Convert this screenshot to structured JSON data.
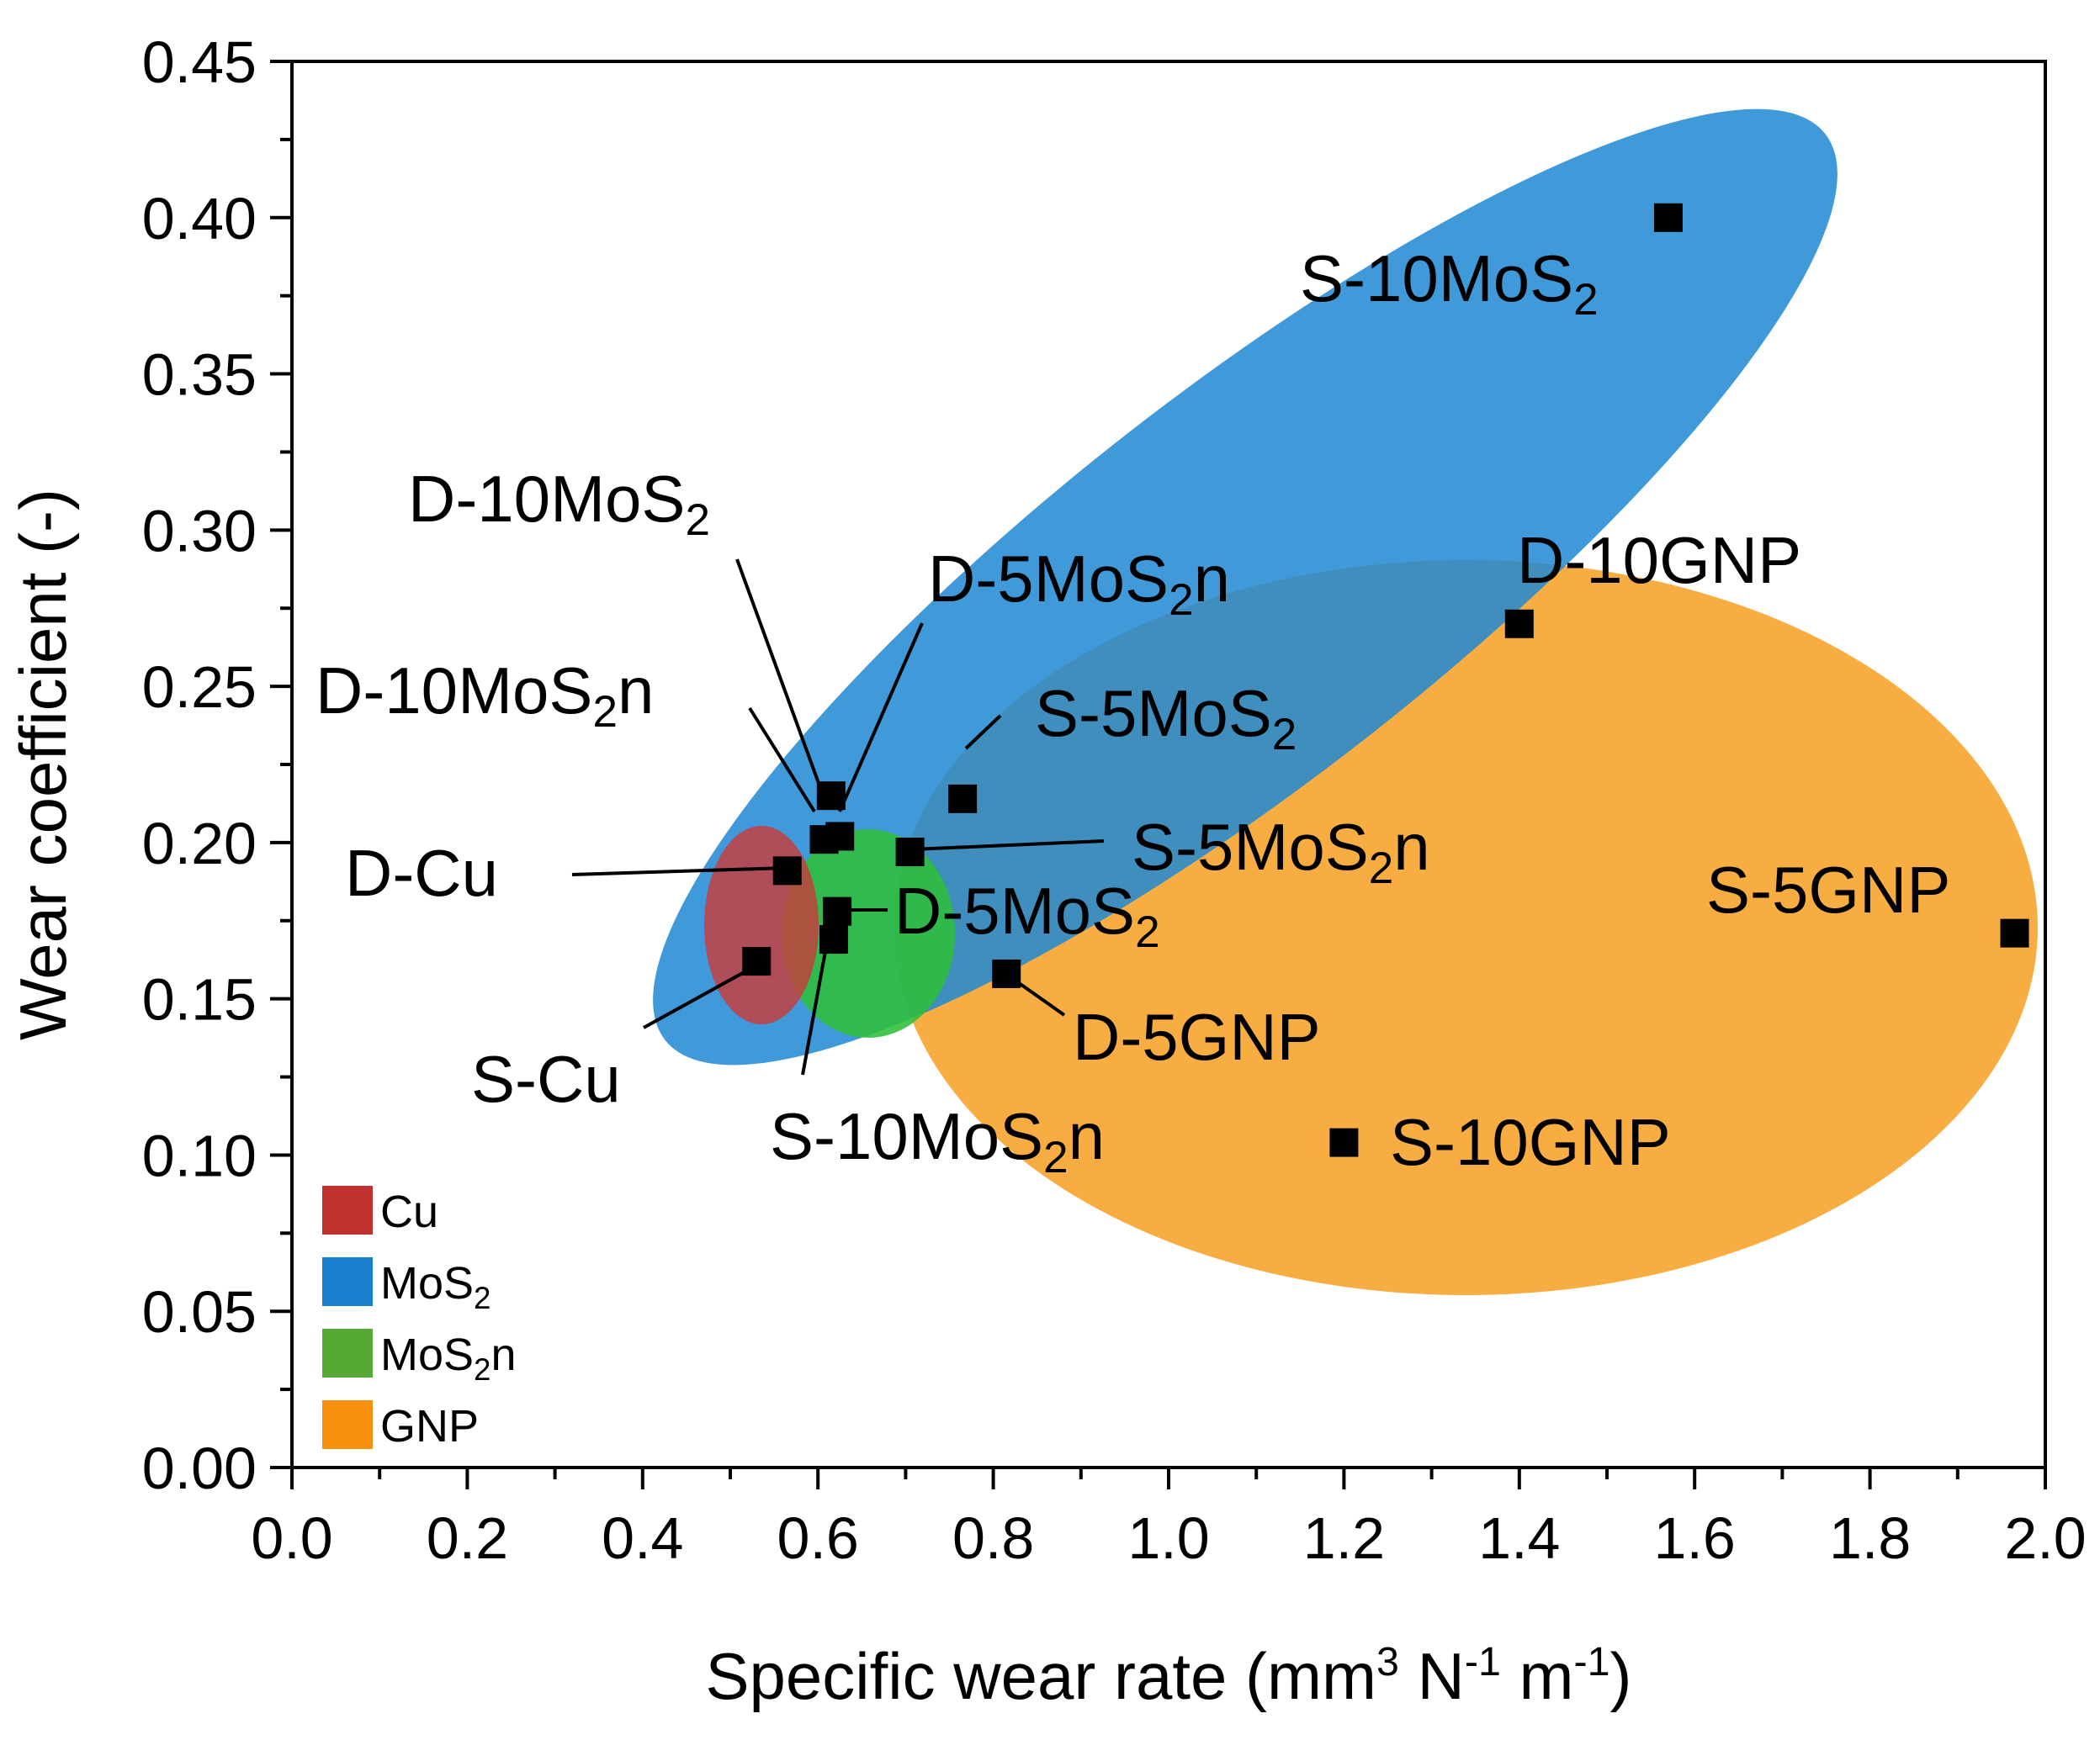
{
  "chart_data": {
    "type": "scatter",
    "title": "",
    "xlabel": "Specific wear rate (mm3 N-1 m-1)",
    "ylabel": "Wear coefficient (-)",
    "xlim": [
      0.0,
      2.0
    ],
    "ylim": [
      0.0,
      0.45
    ],
    "x_ticks": [
      "0.0",
      "0.2",
      "0.4",
      "0.6",
      "0.8",
      "1.0",
      "1.2",
      "1.4",
      "1.6",
      "1.8",
      "2.0"
    ],
    "y_ticks": [
      "0.00",
      "0.05",
      "0.10",
      "0.15",
      "0.20",
      "0.25",
      "0.30",
      "0.35",
      "0.40",
      "0.45"
    ],
    "points": [
      {
        "label": "S-10MoS2",
        "x": 1.57,
        "y": 0.4
      },
      {
        "label": "D-10GNP",
        "x": 1.4,
        "y": 0.27
      },
      {
        "label": "S-5MoS2",
        "x": 0.765,
        "y": 0.214
      },
      {
        "label": "D-10MoS2",
        "x": 0.615,
        "y": 0.215
      },
      {
        "label": "D-5MoS2n",
        "x": 0.625,
        "y": 0.202
      },
      {
        "label": "D-10MoS2n",
        "x": 0.607,
        "y": 0.201
      },
      {
        "label": "S-5MoS2n",
        "x": 0.705,
        "y": 0.197
      },
      {
        "label": "D-Cu",
        "x": 0.565,
        "y": 0.191
      },
      {
        "label": "D-5MoS2",
        "x": 0.622,
        "y": 0.178
      },
      {
        "label": "S-10MoS2n",
        "x": 0.618,
        "y": 0.169
      },
      {
        "label": "S-5GNP",
        "x": 1.965,
        "y": 0.171
      },
      {
        "label": "S-Cu",
        "x": 0.53,
        "y": 0.162
      },
      {
        "label": "D-5GNP",
        "x": 0.815,
        "y": 0.158
      },
      {
        "label": "S-10GNP",
        "x": 1.2,
        "y": 0.104
      }
    ],
    "regions": [
      {
        "name": "GNP",
        "color": "#f7a228"
      },
      {
        "name": "MoS2",
        "color": "#1f88d2"
      },
      {
        "name": "MoS2n",
        "color": "#2fbe3a"
      },
      {
        "name": "Cu",
        "color": "#c83c3c"
      }
    ],
    "legend": [
      {
        "label": "Cu",
        "color": "#c0302f"
      },
      {
        "label": "MoS2",
        "color": "#1a7fce"
      },
      {
        "label": "MoS2n",
        "color": "#55a935"
      },
      {
        "label": "GNP",
        "color": "#f7900f"
      }
    ],
    "legend_position": "bottom-left",
    "grid": false
  }
}
